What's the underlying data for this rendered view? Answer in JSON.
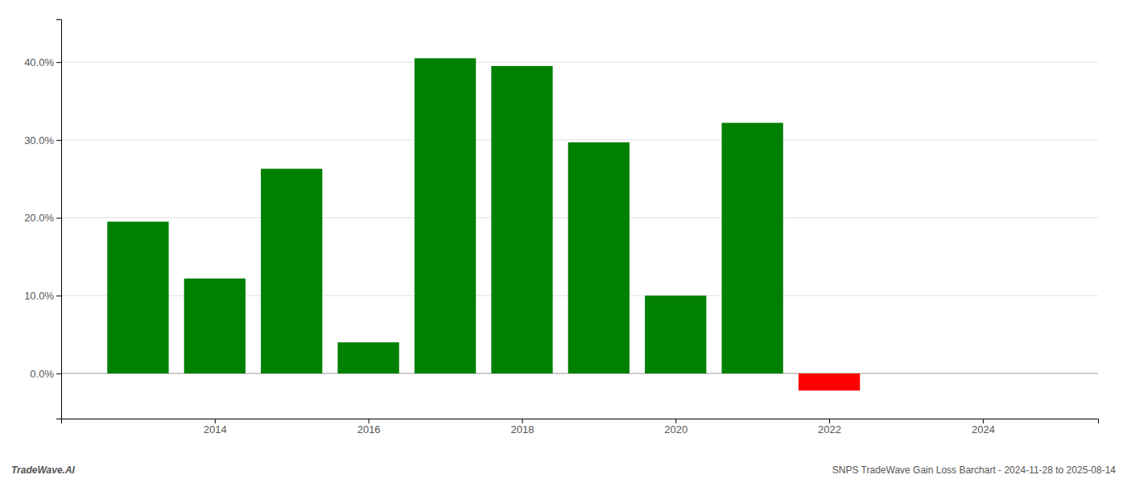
{
  "chart_data": {
    "type": "bar",
    "x": [
      2013,
      2014,
      2015,
      2016,
      2017,
      2018,
      2019,
      2020,
      2021,
      2022
    ],
    "values": [
      0.195,
      0.122,
      0.263,
      0.04,
      0.405,
      0.395,
      0.297,
      0.1,
      0.322,
      -0.022
    ],
    "colors": [
      "#008000",
      "#008000",
      "#008000",
      "#008000",
      "#008000",
      "#008000",
      "#008000",
      "#008000",
      "#008000",
      "#ff0000"
    ],
    "xlim": [
      2012.0,
      2025.5
    ],
    "xticks": [
      2014,
      2016,
      2018,
      2020,
      2022,
      2024
    ],
    "ylim": [
      -0.058,
      0.455
    ],
    "yticks": [
      {
        "value": 0.0,
        "label": "0.0%"
      },
      {
        "value": 0.1,
        "label": "10.0%"
      },
      {
        "value": 0.2,
        "label": "20.0%"
      },
      {
        "value": 0.3,
        "label": "30.0%"
      },
      {
        "value": 0.4,
        "label": "40.0%"
      }
    ],
    "grid": true,
    "annotations": [
      "TradeWave.AI",
      "SNPS TradeWave Gain Loss Barchart - 2024-11-28 to 2025-08-14"
    ]
  }
}
